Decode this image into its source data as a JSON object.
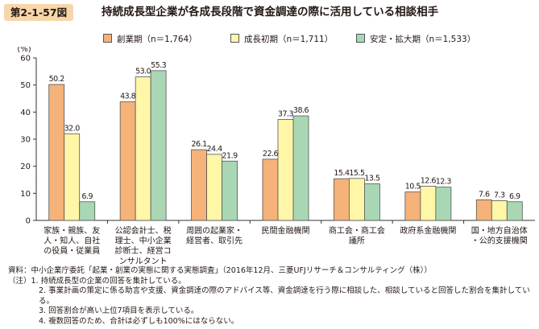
{
  "header": {
    "figure_number": "第2-1-57図",
    "title": "持続成長型企業が各成長段階で資金調達の際に活用している相談相手"
  },
  "chart_data": {
    "type": "bar",
    "ylabel": "(%)",
    "ylim": [
      0,
      60
    ],
    "yticks": [
      0,
      10,
      20,
      30,
      40,
      50,
      60
    ],
    "grid": false,
    "legend_position": "top",
    "categories": [
      [
        "家族・親族、友",
        "人・知人、自社",
        "の役員・従業員"
      ],
      [
        "公認会計士、税",
        "理士、中小企業",
        "診断士、経営コ",
        "ンサルタント"
      ],
      [
        "周囲の起業家・",
        "経営者、取引先"
      ],
      [
        "民間金融機関"
      ],
      [
        "商工会・商工会",
        "議所"
      ],
      [
        "政府系金融機関"
      ],
      [
        "国・地方自治体",
        "・公的支援機関"
      ]
    ],
    "series": [
      {
        "name": "創業期（n＝1,764）",
        "color": "#f5b279",
        "values": [
          50.2,
          43.8,
          26.1,
          22.6,
          15.4,
          10.5,
          7.6
        ]
      },
      {
        "name": "成長初期（n＝1,711）",
        "color": "#fff6a7",
        "values": [
          32.0,
          53.0,
          24.4,
          37.3,
          15.5,
          12.6,
          7.3
        ]
      },
      {
        "name": "安定・拡大期（n＝1,533）",
        "color": "#a9d7b4",
        "values": [
          6.9,
          55.3,
          21.9,
          38.6,
          13.5,
          12.3,
          6.9
        ]
      }
    ]
  },
  "notes": {
    "source": "資料：中小企業庁委託「起業・創業の実態に関する実態調査」（2016年12月、三菱UFJリサーチ＆コンサルティング（株））",
    "items": [
      "（注）1. 持続成長型の企業の回答を集計している。",
      "2. 事業計画の策定に係る助言や支援、資金調達の際のアドバイス等、資金調達を行う際に相談した、相談していると回答した割合を集計している。",
      "3. 回答割合が高い上位7項目を表示している。",
      "4. 複数回答のため、合計は必ずしも100%にはならない。"
    ]
  }
}
